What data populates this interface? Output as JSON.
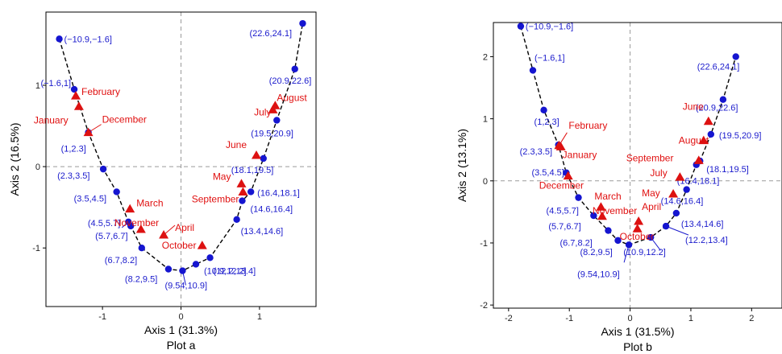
{
  "colors": {
    "points": "#1515d0",
    "months": "#dd1111"
  },
  "chart_data": [
    {
      "type": "scatter",
      "caption": "Plot a",
      "xlabel": "Axis 1 (31.3%)",
      "ylabel": "Axis 2 (16.5%)",
      "xlim": [
        -1.72,
        1.72
      ],
      "ylim": [
        -1.72,
        1.9
      ],
      "xticks": [
        -1,
        0,
        1
      ],
      "yticks": [
        -1,
        0,
        1
      ],
      "reference_lines": true,
      "points": [
        {
          "label": "(−10.9,−1.6]",
          "x": -1.55,
          "y": 1.57
        },
        {
          "label": "(−1.6,1]",
          "x": -1.36,
          "y": 0.95
        },
        {
          "label": "(1,2.3]",
          "x": -1.18,
          "y": 0.42
        },
        {
          "label": "(2.3,3.5]",
          "x": -0.99,
          "y": -0.03
        },
        {
          "label": "(3.5,4.5]",
          "x": -0.82,
          "y": -0.31
        },
        {
          "label": "(4.5,5.7]",
          "x": -0.67,
          "y": -0.68
        },
        {
          "label": "(5.7,6.7]",
          "x": -0.64,
          "y": -0.73
        },
        {
          "label": "(6.7,8.2]",
          "x": -0.5,
          "y": -1.0
        },
        {
          "label": "(8.2,9.5]",
          "x": -0.16,
          "y": -1.26
        },
        {
          "label": "(9.54,10.9]",
          "x": 0.02,
          "y": -1.28
        },
        {
          "label": "(10.9,12.2]",
          "x": 0.19,
          "y": -1.2
        },
        {
          "label": "(12.2,13.4]",
          "x": 0.37,
          "y": -1.12
        },
        {
          "label": "(13.4,14.6]",
          "x": 0.71,
          "y": -0.65
        },
        {
          "label": "(14.6,16.4]",
          "x": 0.78,
          "y": -0.42
        },
        {
          "label": "(16.4,18.1]",
          "x": 0.89,
          "y": -0.31
        },
        {
          "label": "(18.1,19.5]",
          "x": 1.05,
          "y": 0.1
        },
        {
          "label": "(19.5,20.9]",
          "x": 1.22,
          "y": 0.57
        },
        {
          "label": "(20.9,22.6]",
          "x": 1.45,
          "y": 1.2
        },
        {
          "label": "(22.6,24.1]",
          "x": 1.55,
          "y": 1.76
        }
      ],
      "months": [
        {
          "label": "January",
          "x": -1.3,
          "y": 0.74
        },
        {
          "label": "February",
          "x": -1.34,
          "y": 0.87
        },
        {
          "label": "March",
          "x": -0.65,
          "y": -0.52
        },
        {
          "label": "April",
          "x": -0.22,
          "y": -0.84
        },
        {
          "label": "May",
          "x": 0.77,
          "y": -0.21
        },
        {
          "label": "June",
          "x": 0.96,
          "y": 0.14
        },
        {
          "label": "July",
          "x": 1.17,
          "y": 0.7
        },
        {
          "label": "August",
          "x": 1.2,
          "y": 0.75
        },
        {
          "label": "September",
          "x": 0.79,
          "y": -0.31
        },
        {
          "label": "October",
          "x": 0.27,
          "y": -0.97
        },
        {
          "label": "November",
          "x": -0.51,
          "y": -0.77
        },
        {
          "label": "December",
          "x": -1.18,
          "y": 0.42
        }
      ]
    },
    {
      "type": "scatter",
      "caption": "Plot b",
      "xlabel": "Axis 1 (31.5%)",
      "ylabel": "Axis 2 (13.1%)",
      "xlim": [
        -2.25,
        2.5
      ],
      "ylim": [
        -2.05,
        2.55
      ],
      "xticks": [
        -2,
        -1,
        0,
        1,
        2
      ],
      "yticks": [
        -2,
        -1,
        0,
        1,
        2
      ],
      "reference_lines": true,
      "points": [
        {
          "label": "(−10.9,−1.6]",
          "x": -1.8,
          "y": 2.49
        },
        {
          "label": "(−1.6,1]",
          "x": -1.6,
          "y": 1.78
        },
        {
          "label": "(1,2.3]",
          "x": -1.42,
          "y": 1.14
        },
        {
          "label": "(2.3,3.5]",
          "x": -1.18,
          "y": 0.58
        },
        {
          "label": "(3.5,4.5]",
          "x": -1.05,
          "y": 0.13
        },
        {
          "label": "(4.5,5.7]",
          "x": -0.85,
          "y": -0.27
        },
        {
          "label": "(5.7,6.7]",
          "x": -0.6,
          "y": -0.56
        },
        {
          "label": "(6.7,8.2]",
          "x": -0.36,
          "y": -0.8
        },
        {
          "label": "(8.2,9.5]",
          "x": -0.2,
          "y": -0.96
        },
        {
          "label": "(9.54,10.9]",
          "x": -0.02,
          "y": -1.03
        },
        {
          "label": "(10.9,12.2]",
          "x": 0.34,
          "y": -0.91
        },
        {
          "label": "(12.2,13.4]",
          "x": 0.59,
          "y": -0.73
        },
        {
          "label": "(13.4,14.6]",
          "x": 0.76,
          "y": -0.52
        },
        {
          "label": "(14.6,16.4]",
          "x": 0.93,
          "y": -0.14
        },
        {
          "label": "(16.4,18.1]",
          "x": 1.09,
          "y": 0.26
        },
        {
          "label": "(18.1,19.5]",
          "x": 1.15,
          "y": 0.32
        },
        {
          "label": "(19.5,20.9]",
          "x": 1.33,
          "y": 0.75
        },
        {
          "label": "(20.9,22.6]",
          "x": 1.53,
          "y": 1.31
        },
        {
          "label": "(22.6,24.1]",
          "x": 1.74,
          "y": 2.0
        }
      ],
      "months": [
        {
          "label": "January",
          "x": -1.14,
          "y": 0.55
        },
        {
          "label": "February",
          "x": -1.17,
          "y": 0.57
        },
        {
          "label": "March",
          "x": -0.48,
          "y": -0.42
        },
        {
          "label": "April",
          "x": 0.14,
          "y": -0.65
        },
        {
          "label": "May",
          "x": 0.71,
          "y": -0.21
        },
        {
          "label": "June",
          "x": 1.29,
          "y": 0.96
        },
        {
          "label": "July",
          "x": 0.82,
          "y": 0.06
        },
        {
          "label": "August",
          "x": 1.21,
          "y": 0.65
        },
        {
          "label": "September",
          "x": 1.13,
          "y": 0.33
        },
        {
          "label": "October",
          "x": 0.12,
          "y": -0.77
        },
        {
          "label": "November",
          "x": -0.46,
          "y": -0.57
        },
        {
          "label": "December",
          "x": -1.02,
          "y": 0.08
        }
      ]
    }
  ]
}
